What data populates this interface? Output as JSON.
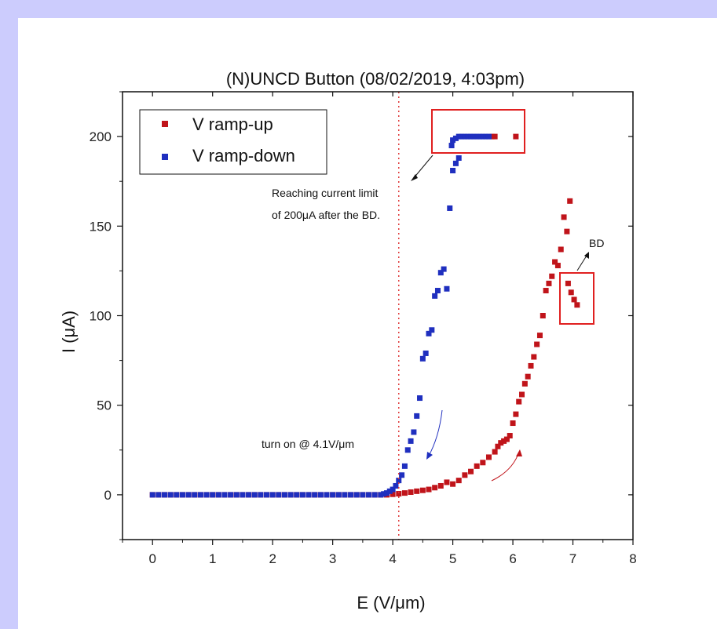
{
  "colors": {
    "background": "#ccccfd",
    "panel": "#ffffff",
    "ramp_up": "#c0141a",
    "ramp_down": "#1f2fbf",
    "threshold_line": "#e03a3a",
    "highlight_box": "#e02020"
  },
  "chart_data": {
    "type": "scatter",
    "title": "(N)UNCD Button (08/02/2019, 4:03pm)",
    "xlabel": "E (V/μm)",
    "ylabel": "I (μA)",
    "xlim": [
      -0.5,
      8
    ],
    "ylim": [
      -25,
      225
    ],
    "x_ticks": [
      0,
      1,
      2,
      3,
      4,
      5,
      6,
      7,
      8
    ],
    "y_ticks": [
      0,
      50,
      100,
      150,
      200
    ],
    "x_tick_labels": [
      "0",
      "1",
      "2",
      "3",
      "4",
      "5",
      "6",
      "7",
      "8"
    ],
    "y_tick_labels": [
      "0",
      "50",
      "100",
      "150",
      "200"
    ],
    "grid": false,
    "legend_position": "top-left",
    "threshold_x": 4.1,
    "series": [
      {
        "name": "V ramp-up",
        "color": "#c0141a",
        "marker": "square",
        "points": [
          [
            0.0,
            0
          ],
          [
            0.1,
            0
          ],
          [
            0.2,
            0
          ],
          [
            0.3,
            0
          ],
          [
            0.4,
            0
          ],
          [
            0.5,
            0
          ],
          [
            0.6,
            0
          ],
          [
            0.7,
            0
          ],
          [
            0.8,
            0
          ],
          [
            0.9,
            0
          ],
          [
            1.0,
            0
          ],
          [
            1.1,
            0
          ],
          [
            1.2,
            0
          ],
          [
            1.3,
            0
          ],
          [
            1.4,
            0
          ],
          [
            1.5,
            0
          ],
          [
            1.6,
            0
          ],
          [
            1.7,
            0
          ],
          [
            1.8,
            0
          ],
          [
            1.9,
            0
          ],
          [
            2.0,
            0
          ],
          [
            2.1,
            0
          ],
          [
            2.2,
            0
          ],
          [
            2.3,
            0
          ],
          [
            2.4,
            0
          ],
          [
            2.5,
            0
          ],
          [
            2.6,
            0
          ],
          [
            2.7,
            0
          ],
          [
            2.8,
            0
          ],
          [
            2.9,
            0
          ],
          [
            3.0,
            0
          ],
          [
            3.1,
            0
          ],
          [
            3.2,
            0
          ],
          [
            3.3,
            0
          ],
          [
            3.4,
            0
          ],
          [
            3.5,
            0
          ],
          [
            3.6,
            0
          ],
          [
            3.7,
            0
          ],
          [
            3.8,
            0
          ],
          [
            3.9,
            0
          ],
          [
            4.0,
            0.3
          ],
          [
            4.1,
            0.6
          ],
          [
            4.2,
            1
          ],
          [
            4.3,
            1.5
          ],
          [
            4.4,
            2
          ],
          [
            4.5,
            2.5
          ],
          [
            4.6,
            3
          ],
          [
            4.7,
            4
          ],
          [
            4.8,
            5
          ],
          [
            4.9,
            7
          ],
          [
            5.0,
            6
          ],
          [
            5.1,
            8
          ],
          [
            5.2,
            11
          ],
          [
            5.3,
            13
          ],
          [
            5.4,
            16
          ],
          [
            5.5,
            18
          ],
          [
            5.6,
            21
          ],
          [
            5.7,
            24
          ],
          [
            5.75,
            27
          ],
          [
            5.8,
            29
          ],
          [
            5.85,
            30
          ],
          [
            5.9,
            31
          ],
          [
            5.95,
            33
          ],
          [
            6.0,
            40
          ],
          [
            6.05,
            45
          ],
          [
            6.1,
            52
          ],
          [
            6.15,
            56
          ],
          [
            6.2,
            62
          ],
          [
            6.25,
            66
          ],
          [
            6.3,
            72
          ],
          [
            6.35,
            77
          ],
          [
            6.4,
            84
          ],
          [
            6.45,
            89
          ],
          [
            6.5,
            100
          ],
          [
            6.55,
            114
          ],
          [
            6.6,
            118
          ],
          [
            6.65,
            122
          ],
          [
            6.7,
            130
          ],
          [
            6.75,
            128
          ],
          [
            6.8,
            137
          ],
          [
            6.85,
            155
          ],
          [
            6.9,
            147
          ],
          [
            6.95,
            164
          ],
          [
            6.92,
            118
          ],
          [
            6.97,
            113
          ],
          [
            7.02,
            109
          ],
          [
            7.07,
            106
          ],
          [
            5.65,
            200
          ],
          [
            5.7,
            200
          ],
          [
            6.05,
            200
          ]
        ]
      },
      {
        "name": "V ramp-down",
        "color": "#1f2fbf",
        "marker": "square",
        "points": [
          [
            0.0,
            0
          ],
          [
            0.1,
            0
          ],
          [
            0.2,
            0
          ],
          [
            0.3,
            0
          ],
          [
            0.4,
            0
          ],
          [
            0.5,
            0
          ],
          [
            0.6,
            0
          ],
          [
            0.7,
            0
          ],
          [
            0.8,
            0
          ],
          [
            0.9,
            0
          ],
          [
            1.0,
            0
          ],
          [
            1.1,
            0
          ],
          [
            1.2,
            0
          ],
          [
            1.3,
            0
          ],
          [
            1.4,
            0
          ],
          [
            1.5,
            0
          ],
          [
            1.6,
            0
          ],
          [
            1.7,
            0
          ],
          [
            1.8,
            0
          ],
          [
            1.9,
            0
          ],
          [
            2.0,
            0
          ],
          [
            2.1,
            0
          ],
          [
            2.2,
            0
          ],
          [
            2.3,
            0
          ],
          [
            2.4,
            0
          ],
          [
            2.5,
            0
          ],
          [
            2.6,
            0
          ],
          [
            2.7,
            0
          ],
          [
            2.8,
            0
          ],
          [
            2.9,
            0
          ],
          [
            3.0,
            0
          ],
          [
            3.1,
            0
          ],
          [
            3.2,
            0
          ],
          [
            3.3,
            0
          ],
          [
            3.4,
            0
          ],
          [
            3.5,
            0
          ],
          [
            3.6,
            0
          ],
          [
            3.7,
            0
          ],
          [
            3.8,
            0
          ],
          [
            3.85,
            0.5
          ],
          [
            3.9,
            1
          ],
          [
            3.95,
            2
          ],
          [
            4.0,
            3
          ],
          [
            4.05,
            5
          ],
          [
            4.1,
            8
          ],
          [
            4.15,
            11
          ],
          [
            4.2,
            16
          ],
          [
            4.25,
            25
          ],
          [
            4.3,
            30
          ],
          [
            4.35,
            35
          ],
          [
            4.4,
            44
          ],
          [
            4.45,
            54
          ],
          [
            4.5,
            76
          ],
          [
            4.55,
            79
          ],
          [
            4.6,
            90
          ],
          [
            4.65,
            92
          ],
          [
            4.7,
            111
          ],
          [
            4.75,
            114
          ],
          [
            4.8,
            124
          ],
          [
            4.85,
            126
          ],
          [
            4.9,
            115
          ],
          [
            4.95,
            160
          ],
          [
            5.0,
            181
          ],
          [
            5.05,
            185
          ],
          [
            5.1,
            188
          ],
          [
            4.98,
            195
          ],
          [
            5.0,
            198
          ],
          [
            5.05,
            199
          ],
          [
            5.1,
            200
          ],
          [
            5.15,
            200
          ],
          [
            5.2,
            200
          ],
          [
            5.25,
            200
          ],
          [
            5.3,
            200
          ],
          [
            5.35,
            200
          ],
          [
            5.4,
            200
          ],
          [
            5.45,
            200
          ],
          [
            5.5,
            200
          ],
          [
            5.55,
            200
          ],
          [
            5.6,
            200
          ]
        ]
      }
    ],
    "annotations": {
      "current_limit_line1": "Reaching current limit",
      "current_limit_line2": "of 200μA after the BD.",
      "turn_on": "turn on @ 4.1V/μm",
      "bd": "BD"
    }
  }
}
